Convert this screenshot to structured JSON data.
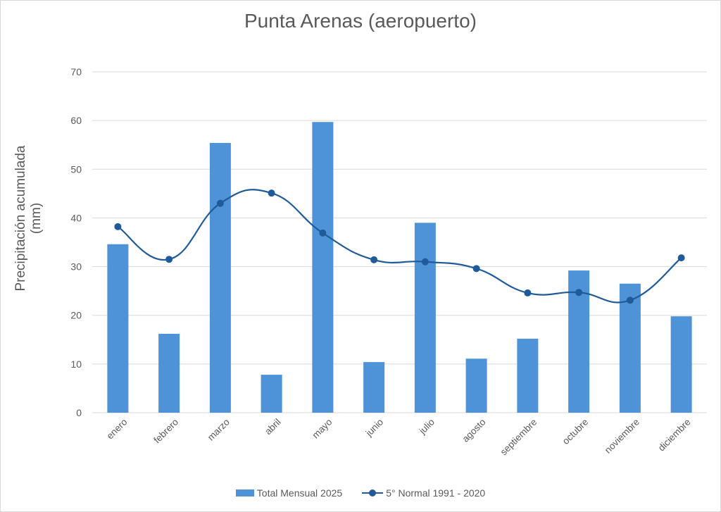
{
  "chart_data": {
    "type": "bar",
    "title": "Punta Arenas (aeropuerto)",
    "xlabel": "",
    "ylabel": "Precipitación acumulada (mm)",
    "ylim": [
      0,
      70
    ],
    "yticks": [
      0,
      10,
      20,
      30,
      40,
      50,
      60,
      70
    ],
    "grid": true,
    "legend_position": "bottom",
    "categories": [
      "enero",
      "febrero",
      "marzo",
      "abril",
      "mayo",
      "junio",
      "julio",
      "agosto",
      "septiembre",
      "octubre",
      "noviembre",
      "diciembre"
    ],
    "series": [
      {
        "name": "Total Mensual 2025",
        "type": "bar",
        "color": "#4e93d8",
        "values": [
          34.6,
          16.2,
          55.4,
          7.8,
          59.7,
          10.4,
          39.0,
          11.1,
          15.2,
          29.2,
          26.5,
          19.8
        ]
      },
      {
        "name": "5° Normal 1991 - 2020",
        "type": "line",
        "smooth": true,
        "marker": "circle",
        "color": "#1f5b99",
        "values": [
          38.2,
          31.5,
          43.0,
          45.1,
          36.9,
          31.4,
          31.0,
          29.6,
          24.6,
          24.7,
          23.1,
          31.8
        ]
      }
    ]
  }
}
